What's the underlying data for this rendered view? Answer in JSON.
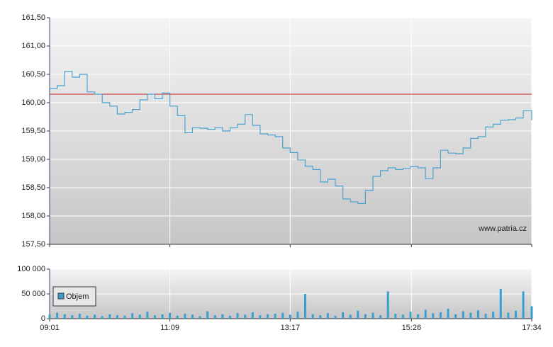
{
  "chart_data": [
    {
      "type": "line",
      "color": "#4aa3cf",
      "watermark": "www.patria.cz",
      "reference_line": 160.15,
      "reference_color": "#cc2222",
      "ylim": [
        157.5,
        161.5
      ],
      "yticks": [
        {
          "value": 157.5,
          "label": "157,50"
        },
        {
          "value": 158,
          "label": "158,00"
        },
        {
          "value": 158.5,
          "label": "158,50"
        },
        {
          "value": 159,
          "label": "159,00"
        },
        {
          "value": 159.5,
          "label": "159,50"
        },
        {
          "value": 160,
          "label": "160,00"
        },
        {
          "value": 160.5,
          "label": "160,50"
        },
        {
          "value": 161,
          "label": "161,00"
        },
        {
          "value": 161.5,
          "label": "161,50"
        }
      ],
      "xlim": [
        "09:01",
        "17:34"
      ],
      "x": [
        "09:01",
        "09:09",
        "09:17",
        "09:25",
        "09:33",
        "09:41",
        "09:49",
        "09:57",
        "10:05",
        "10:13",
        "10:21",
        "10:29",
        "10:37",
        "10:45",
        "10:53",
        "11:01",
        "11:09",
        "11:17",
        "11:25",
        "11:33",
        "11:41",
        "11:49",
        "11:57",
        "12:05",
        "12:13",
        "12:21",
        "12:29",
        "12:37",
        "12:45",
        "12:53",
        "13:01",
        "13:09",
        "13:17",
        "13:25",
        "13:33",
        "13:41",
        "13:49",
        "13:57",
        "14:05",
        "14:13",
        "14:21",
        "14:29",
        "14:37",
        "14:45",
        "14:53",
        "15:01",
        "15:09",
        "15:17",
        "15:25",
        "15:33",
        "15:41",
        "15:49",
        "15:57",
        "16:05",
        "16:13",
        "16:21",
        "16:29",
        "16:37",
        "16:45",
        "16:53",
        "17:01",
        "17:09",
        "17:17",
        "17:25",
        "17:34"
      ],
      "values": [
        160.25,
        160.3,
        160.55,
        160.45,
        160.5,
        160.19,
        160.15,
        160.0,
        159.94,
        159.8,
        159.83,
        159.88,
        160.05,
        160.15,
        160.07,
        160.17,
        159.94,
        159.77,
        159.47,
        159.56,
        159.55,
        159.53,
        159.56,
        159.5,
        159.56,
        159.62,
        159.79,
        159.6,
        159.45,
        159.43,
        159.4,
        159.2,
        159.12,
        158.99,
        158.88,
        158.82,
        158.6,
        158.65,
        158.53,
        158.3,
        158.25,
        158.22,
        158.45,
        158.7,
        158.8,
        158.85,
        158.82,
        158.84,
        158.87,
        158.85,
        158.66,
        158.85,
        159.16,
        159.11,
        159.1,
        159.2,
        159.37,
        159.4,
        159.57,
        159.62,
        159.69,
        159.7,
        159.73,
        159.86,
        159.69
      ]
    },
    {
      "type": "bar",
      "legend": "upper left",
      "ylim": [
        0,
        100000
      ],
      "yticks": [
        0,
        {
          "value": 50000,
          "label": "50 000"
        },
        {
          "value": 100000,
          "label": "100 000"
        }
      ],
      "xlim": [
        "09:01",
        "17:34"
      ],
      "xticks": [
        "09:01",
        "11:09",
        "13:17",
        "15:26",
        "17:34"
      ],
      "x": [
        "09:01",
        "09:09",
        "09:17",
        "09:25",
        "09:33",
        "09:41",
        "09:49",
        "09:57",
        "10:05",
        "10:13",
        "10:21",
        "10:29",
        "10:37",
        "10:45",
        "10:53",
        "11:01",
        "11:09",
        "11:17",
        "11:25",
        "11:33",
        "11:41",
        "11:49",
        "11:57",
        "12:05",
        "12:13",
        "12:21",
        "12:29",
        "12:37",
        "12:45",
        "12:53",
        "13:01",
        "13:09",
        "13:17",
        "13:25",
        "13:33",
        "13:41",
        "13:49",
        "13:57",
        "14:05",
        "14:13",
        "14:21",
        "14:29",
        "14:37",
        "14:45",
        "14:53",
        "15:01",
        "15:09",
        "15:17",
        "15:25",
        "15:33",
        "15:41",
        "15:49",
        "15:57",
        "16:05",
        "16:13",
        "16:21",
        "16:29",
        "16:37",
        "16:45",
        "16:53",
        "17:01",
        "17:09",
        "17:17",
        "17:25",
        "17:34"
      ],
      "series": [
        {
          "name": "Objem",
          "color": "#3a9fd0",
          "values": [
            8000,
            12000,
            9000,
            7000,
            10000,
            6000,
            8000,
            5000,
            9000,
            7000,
            6000,
            11000,
            8000,
            14000,
            7000,
            9000,
            12000,
            6000,
            10000,
            8000,
            5000,
            15000,
            7000,
            9000,
            6000,
            11000,
            8000,
            13000,
            7000,
            9000,
            10000,
            12000,
            8000,
            14000,
            50000,
            9000,
            7000,
            11000,
            6000,
            13000,
            8000,
            16000,
            9000,
            12000,
            7000,
            55000,
            10000,
            8000,
            14000,
            9000,
            18000,
            11000,
            13000,
            20000,
            9000,
            15000,
            12000,
            17000,
            10000,
            14000,
            60000,
            12000,
            16000,
            55000,
            25000
          ]
        }
      ]
    }
  ]
}
